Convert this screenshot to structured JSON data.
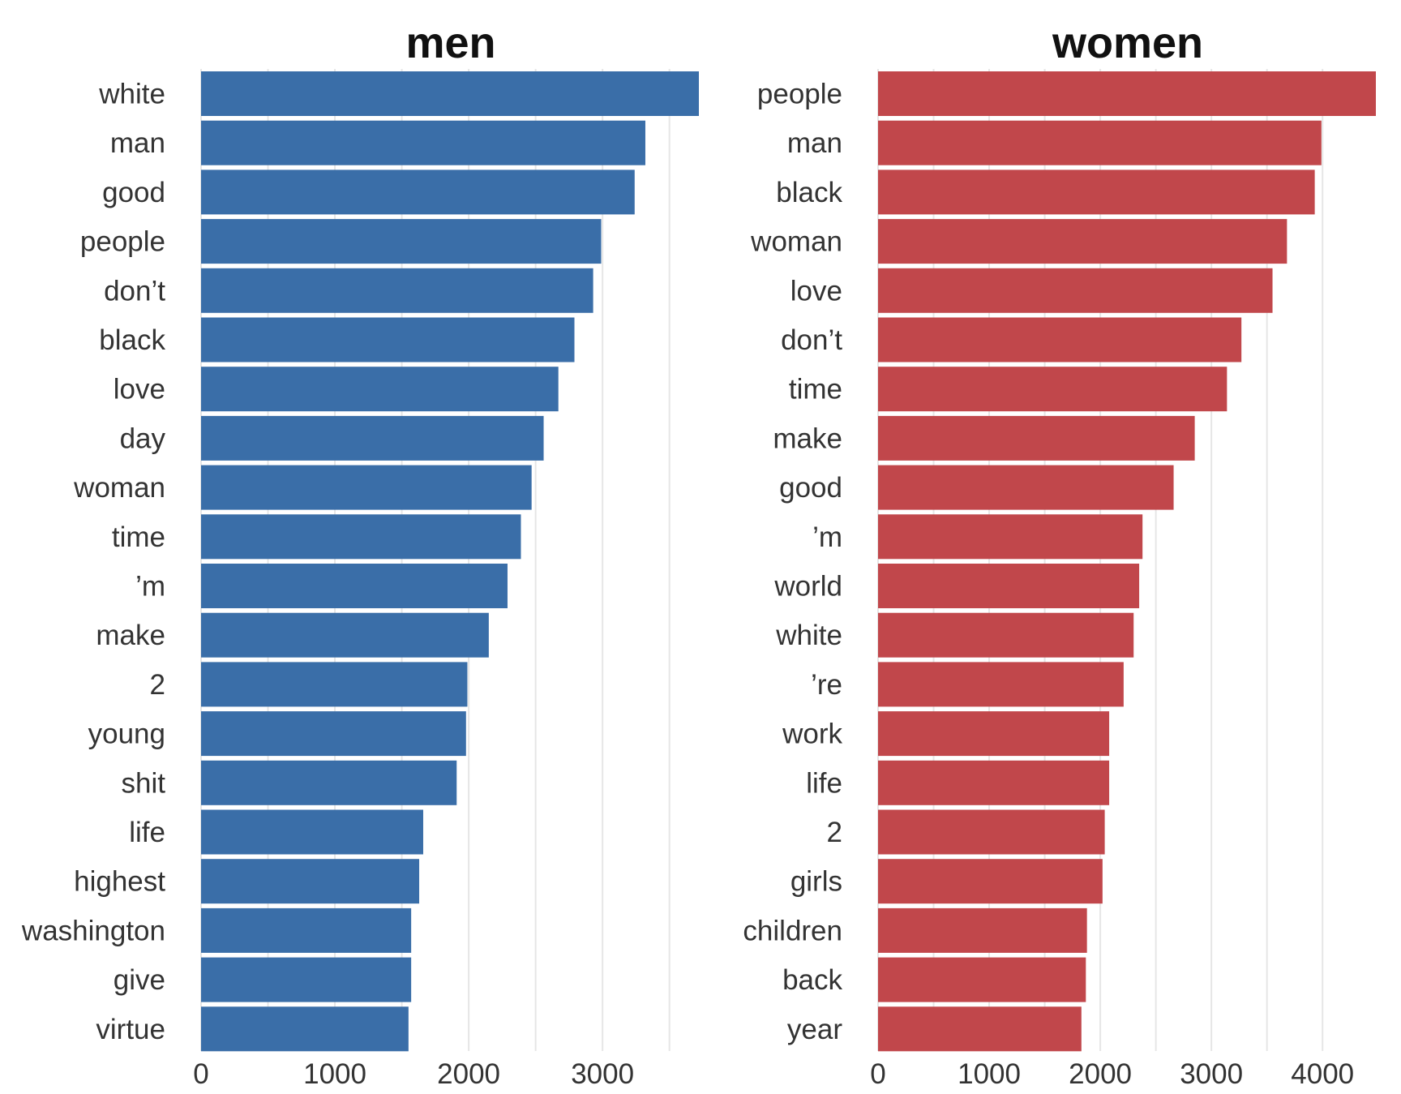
{
  "chart_data": [
    {
      "type": "bar",
      "orientation": "horizontal",
      "title": "men",
      "color": "#3a6ea8",
      "categories": [
        "white",
        "man",
        "good",
        "people",
        "don’t",
        "black",
        "love",
        "day",
        "woman",
        "time",
        "’m",
        "make",
        "2",
        "young",
        "shit",
        "life",
        "highest",
        "washington",
        "give",
        "virtue"
      ],
      "values": [
        3720,
        3320,
        3240,
        2990,
        2930,
        2790,
        2670,
        2560,
        2470,
        2390,
        2290,
        2150,
        1990,
        1980,
        1910,
        1660,
        1630,
        1570,
        1570,
        1550
      ],
      "xticks": [
        0,
        1000,
        2000,
        3000
      ],
      "xlim": [
        0,
        3720
      ],
      "grid": "vertical"
    },
    {
      "type": "bar",
      "orientation": "horizontal",
      "title": "women",
      "color": "#c1474b",
      "categories": [
        "people",
        "man",
        "black",
        "woman",
        "love",
        "don’t",
        "time",
        "make",
        "good",
        "’m",
        "world",
        "white",
        "’re",
        "work",
        "life",
        "2",
        "girls",
        "children",
        "back",
        "year"
      ],
      "values": [
        4480,
        3990,
        3930,
        3680,
        3550,
        3270,
        3140,
        2850,
        2660,
        2380,
        2350,
        2300,
        2210,
        2080,
        2080,
        2040,
        2020,
        1880,
        1870,
        1830
      ],
      "xticks": [
        0,
        1000,
        2000,
        3000,
        4000
      ],
      "xlim": [
        0,
        4480
      ],
      "grid": "vertical"
    }
  ]
}
